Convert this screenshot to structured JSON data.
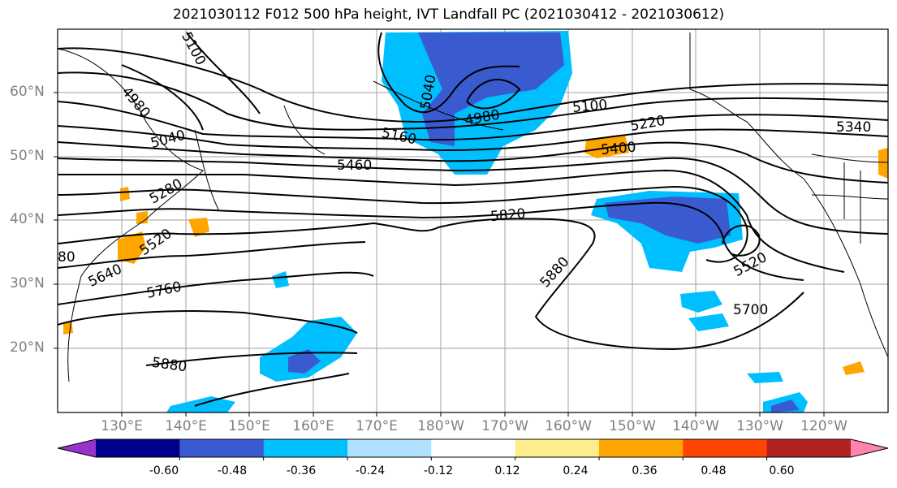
{
  "title": "2021030112 F012 500 hPa height, IVT Landfall PC (2021030412 - 2021030612)",
  "lat_labels": [
    "60°N",
    "50°N",
    "40°N",
    "30°N",
    "20°N"
  ],
  "lon_labels": [
    "130°E",
    "140°E",
    "150°E",
    "160°E",
    "170°E",
    "180°W",
    "170°W",
    "160°W",
    "150°W",
    "140°W",
    "130°W",
    "120°W"
  ],
  "contour_labels": [
    "5100",
    "4980",
    "5040",
    "5280",
    "5520",
    "5640",
    "5760",
    "5880",
    "5040",
    "4980",
    "5160",
    "5460",
    "5820",
    "5880",
    "5100",
    "5220",
    "5400",
    "5340",
    "5520",
    "5700",
    "80"
  ],
  "colorbar": {
    "labels": [
      "-0.60",
      "-0.48",
      "-0.36",
      "-0.24",
      "-0.12",
      "0.12",
      "0.24",
      "0.36",
      "0.48",
      "0.60"
    ],
    "colors": [
      "#9932cc",
      "#00008b",
      "#3a5bd0",
      "#00bfff",
      "#b0e2ff",
      "#ffffff",
      "#ffec8b",
      "#ffa500",
      "#ff4500",
      "#b22222",
      "#ff85b0"
    ]
  }
}
